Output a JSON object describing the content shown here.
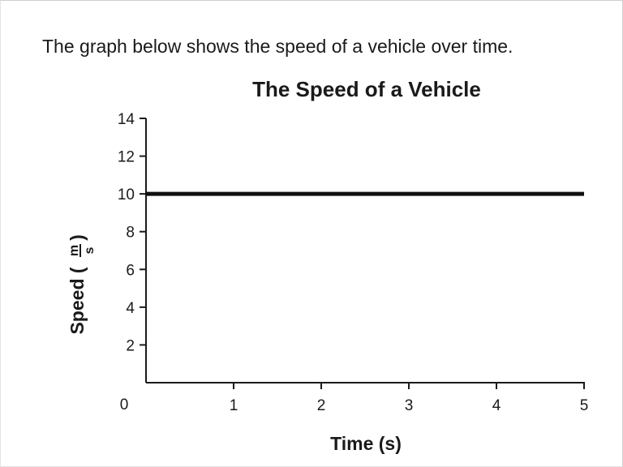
{
  "prompt": {
    "text": "The graph below shows the speed of a vehicle over time."
  },
  "chart_data": {
    "type": "line",
    "title": "The Speed of a Vehicle",
    "xlabel": "Time (s)",
    "ylabel": {
      "prefix": "Speed (",
      "unit_numerator": "m",
      "unit_denominator": "s",
      "suffix": ")"
    },
    "xlim": [
      0,
      5
    ],
    "ylim": [
      0,
      14
    ],
    "x_ticks": [
      1,
      2,
      3,
      4,
      5
    ],
    "y_ticks": [
      2,
      4,
      6,
      8,
      10,
      12,
      14
    ],
    "origin_label": "0",
    "grid": false,
    "series": [
      {
        "x": [
          0,
          5
        ],
        "y": [
          10,
          10
        ]
      }
    ]
  }
}
